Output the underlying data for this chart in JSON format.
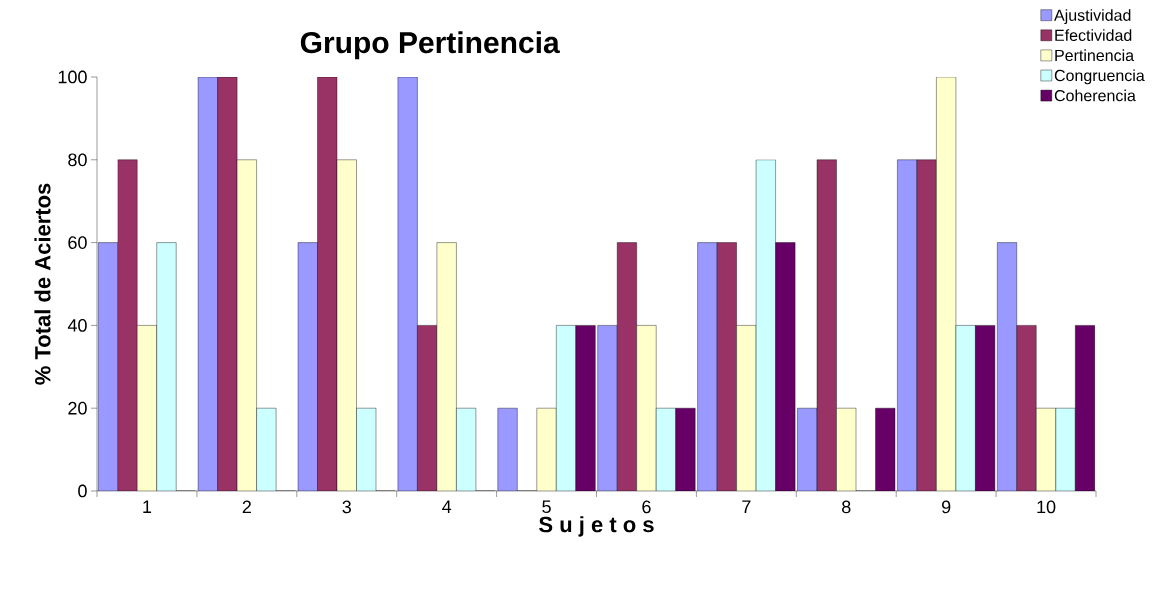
{
  "chart_data": {
    "type": "bar",
    "title": "Grupo Pertinencia",
    "xlabel": "S u j e t o s",
    "ylabel": "% Total de Aciertos",
    "categories": [
      "1",
      "2",
      "3",
      "4",
      "5",
      "6",
      "7",
      "8",
      "9",
      "10"
    ],
    "series": [
      {
        "name": "Ajustividad",
        "color": "#9999ff",
        "values": [
          60,
          100,
          60,
          100,
          20,
          40,
          60,
          20,
          80,
          60
        ]
      },
      {
        "name": "Efectividad",
        "color": "#993366",
        "values": [
          80,
          100,
          100,
          40,
          0,
          60,
          60,
          80,
          80,
          40
        ]
      },
      {
        "name": "Pertinencia",
        "color": "#ffffcc",
        "values": [
          40,
          80,
          80,
          60,
          20,
          40,
          40,
          20,
          100,
          20
        ]
      },
      {
        "name": "Congruencia",
        "color": "#ccffff",
        "values": [
          60,
          20,
          20,
          20,
          40,
          20,
          80,
          0,
          40,
          20
        ]
      },
      {
        "name": "Coherencia",
        "color": "#660066",
        "values": [
          0,
          0,
          0,
          0,
          40,
          20,
          60,
          20,
          40,
          40
        ]
      }
    ],
    "ylim": [
      0,
      100
    ],
    "yticks": [
      0,
      20,
      40,
      60,
      80,
      100
    ],
    "grid": false,
    "legend": "top right"
  }
}
